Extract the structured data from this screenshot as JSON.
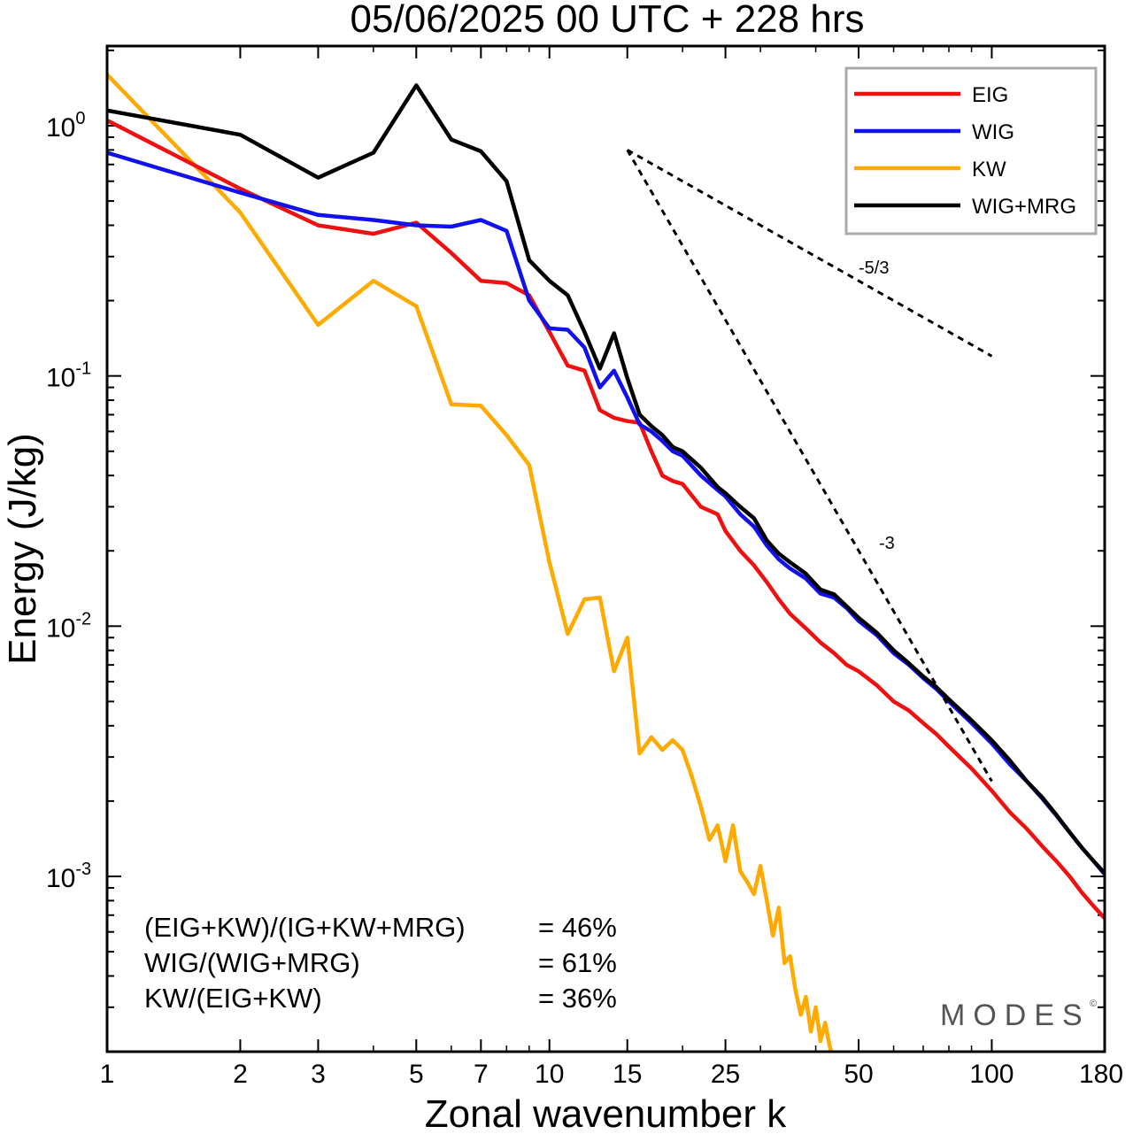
{
  "chart_data": {
    "type": "line",
    "title": "05/06/2025  00 UTC  + 228 hrs",
    "xlabel": "Zonal wavenumber k",
    "ylabel": "Energy (J/kg)",
    "xscale": "log",
    "yscale": "log",
    "xlim": [
      1,
      180
    ],
    "ylim": [
      0.00018,
      2.0
    ],
    "xticks": [
      {
        "value": 1,
        "label": "1"
      },
      {
        "value": 2,
        "label": "2"
      },
      {
        "value": 3,
        "label": "3"
      },
      {
        "value": 5,
        "label": "5"
      },
      {
        "value": 7,
        "label": "7"
      },
      {
        "value": 10,
        "label": "10"
      },
      {
        "value": 15,
        "label": "15"
      },
      {
        "value": 25,
        "label": "25"
      },
      {
        "value": 50,
        "label": "50"
      },
      {
        "value": 100,
        "label": "100"
      },
      {
        "value": 180,
        "label": "180"
      }
    ],
    "yticks": [
      {
        "value": 1,
        "base": "10",
        "exp": "0"
      },
      {
        "value": 0.1,
        "base": "10",
        "exp": "-1"
      },
      {
        "value": 0.01,
        "base": "10",
        "exp": "-2"
      },
      {
        "value": 0.001,
        "base": "10",
        "exp": "-3"
      }
    ],
    "legend_position": "top-right",
    "series": [
      {
        "name": "EIG",
        "color": "#ee1111",
        "points": [
          [
            1,
            1.05
          ],
          [
            2,
            0.56
          ],
          [
            3,
            0.4
          ],
          [
            4,
            0.37
          ],
          [
            5,
            0.41
          ],
          [
            6,
            0.31
          ],
          [
            7,
            0.24
          ],
          [
            8,
            0.235
          ],
          [
            9,
            0.21
          ],
          [
            10,
            0.15
          ],
          [
            11,
            0.11
          ],
          [
            12,
            0.105
          ],
          [
            13,
            0.073
          ],
          [
            14,
            0.068
          ],
          [
            15,
            0.066
          ],
          [
            16,
            0.065
          ],
          [
            17,
            0.05
          ],
          [
            18,
            0.04
          ],
          [
            19,
            0.038
          ],
          [
            20,
            0.037
          ],
          [
            22,
            0.03
          ],
          [
            24,
            0.028
          ],
          [
            25,
            0.024
          ],
          [
            27,
            0.02
          ],
          [
            29,
            0.0175
          ],
          [
            31,
            0.015
          ],
          [
            33,
            0.0128
          ],
          [
            35,
            0.0112
          ],
          [
            38,
            0.0098
          ],
          [
            41,
            0.0086
          ],
          [
            44,
            0.0078
          ],
          [
            47,
            0.007
          ],
          [
            50,
            0.0066
          ],
          [
            55,
            0.0058
          ],
          [
            60,
            0.005
          ],
          [
            65,
            0.0046
          ],
          [
            70,
            0.0041
          ],
          [
            75,
            0.0037
          ],
          [
            80,
            0.0033
          ],
          [
            90,
            0.0027
          ],
          [
            100,
            0.0022
          ],
          [
            110,
            0.0018
          ],
          [
            120,
            0.00155
          ],
          [
            130,
            0.00132
          ],
          [
            140,
            0.00115
          ],
          [
            150,
            0.001
          ],
          [
            160,
            0.00086
          ],
          [
            170,
            0.00076
          ],
          [
            180,
            0.00068
          ]
        ]
      },
      {
        "name": "WIG",
        "color": "#1111ee",
        "points": [
          [
            1,
            0.78
          ],
          [
            2,
            0.54
          ],
          [
            3,
            0.44
          ],
          [
            4,
            0.42
          ],
          [
            5,
            0.4
          ],
          [
            6,
            0.395
          ],
          [
            7,
            0.42
          ],
          [
            8,
            0.38
          ],
          [
            9,
            0.2
          ],
          [
            10,
            0.155
          ],
          [
            11,
            0.153
          ],
          [
            12,
            0.13
          ],
          [
            13,
            0.09
          ],
          [
            14,
            0.105
          ],
          [
            15,
            0.082
          ],
          [
            16,
            0.064
          ],
          [
            17,
            0.06
          ],
          [
            18,
            0.055
          ],
          [
            19,
            0.05
          ],
          [
            20,
            0.048
          ],
          [
            22,
            0.04
          ],
          [
            24,
            0.035
          ],
          [
            25,
            0.033
          ],
          [
            27,
            0.028
          ],
          [
            29,
            0.025
          ],
          [
            31,
            0.021
          ],
          [
            33,
            0.0185
          ],
          [
            35,
            0.017
          ],
          [
            38,
            0.0155
          ],
          [
            41,
            0.0135
          ],
          [
            44,
            0.013
          ],
          [
            47,
            0.0118
          ],
          [
            50,
            0.0105
          ],
          [
            55,
            0.0092
          ],
          [
            60,
            0.0078
          ],
          [
            65,
            0.007
          ],
          [
            70,
            0.0062
          ],
          [
            75,
            0.0056
          ],
          [
            80,
            0.005
          ],
          [
            90,
            0.0041
          ],
          [
            100,
            0.0034
          ],
          [
            110,
            0.0028
          ],
          [
            120,
            0.0024
          ],
          [
            130,
            0.00205
          ],
          [
            140,
            0.00175
          ],
          [
            150,
            0.0015
          ],
          [
            160,
            0.0013
          ],
          [
            170,
            0.00115
          ],
          [
            180,
            0.00102
          ]
        ]
      },
      {
        "name": "KW",
        "color": "#ffaa00",
        "points": [
          [
            1,
            1.6
          ],
          [
            2,
            0.45
          ],
          [
            3,
            0.16
          ],
          [
            4,
            0.24
          ],
          [
            5,
            0.19
          ],
          [
            6,
            0.077
          ],
          [
            7,
            0.076
          ],
          [
            8,
            0.058
          ],
          [
            9,
            0.044
          ],
          [
            10,
            0.018
          ],
          [
            11,
            0.0093
          ],
          [
            12,
            0.0128
          ],
          [
            13,
            0.013
          ],
          [
            14,
            0.0066
          ],
          [
            15,
            0.009
          ],
          [
            16,
            0.0031
          ],
          [
            17,
            0.0036
          ],
          [
            18,
            0.0032
          ],
          [
            19,
            0.0035
          ],
          [
            20,
            0.0032
          ],
          [
            21,
            0.0025
          ],
          [
            22,
            0.0019
          ],
          [
            23,
            0.0014
          ],
          [
            24,
            0.0016
          ],
          [
            25,
            0.00115
          ],
          [
            26,
            0.0016
          ],
          [
            27,
            0.00105
          ],
          [
            28,
            0.00095
          ],
          [
            29,
            0.00085
          ],
          [
            30,
            0.0011
          ],
          [
            31,
            0.0008
          ],
          [
            32,
            0.00058
          ],
          [
            33,
            0.00075
          ],
          [
            34,
            0.00045
          ],
          [
            35,
            0.00048
          ],
          [
            36,
            0.00035
          ],
          [
            37,
            0.00028
          ],
          [
            38,
            0.00033
          ],
          [
            39,
            0.00024
          ],
          [
            40,
            0.0003
          ],
          [
            41,
            0.00022
          ],
          [
            42,
            0.00026
          ],
          [
            43,
            0.00021
          ],
          [
            44,
            0.00018
          ]
        ]
      },
      {
        "name": "WIG+MRG",
        "color": "#000000",
        "points": [
          [
            1,
            1.15
          ],
          [
            2,
            0.92
          ],
          [
            3,
            0.62
          ],
          [
            4,
            0.78
          ],
          [
            5,
            1.45
          ],
          [
            6,
            0.88
          ],
          [
            7,
            0.79
          ],
          [
            8,
            0.6
          ],
          [
            9,
            0.29
          ],
          [
            10,
            0.24
          ],
          [
            11,
            0.21
          ],
          [
            12,
            0.15
          ],
          [
            13,
            0.107
          ],
          [
            14,
            0.148
          ],
          [
            15,
            0.098
          ],
          [
            16,
            0.07
          ],
          [
            17,
            0.063
          ],
          [
            18,
            0.058
          ],
          [
            19,
            0.052
          ],
          [
            20,
            0.05
          ],
          [
            22,
            0.043
          ],
          [
            24,
            0.036
          ],
          [
            25,
            0.034
          ],
          [
            27,
            0.03
          ],
          [
            29,
            0.027
          ],
          [
            31,
            0.022
          ],
          [
            33,
            0.0195
          ],
          [
            35,
            0.018
          ],
          [
            38,
            0.0162
          ],
          [
            41,
            0.014
          ],
          [
            44,
            0.0134
          ],
          [
            47,
            0.012
          ],
          [
            50,
            0.0108
          ],
          [
            55,
            0.0094
          ],
          [
            60,
            0.008
          ],
          [
            65,
            0.0071
          ],
          [
            70,
            0.0063
          ],
          [
            75,
            0.0057
          ],
          [
            80,
            0.0051
          ],
          [
            90,
            0.0042
          ],
          [
            100,
            0.0035
          ],
          [
            110,
            0.0029
          ],
          [
            120,
            0.0024
          ],
          [
            130,
            0.00207
          ],
          [
            140,
            0.00176
          ],
          [
            150,
            0.0015
          ],
          [
            160,
            0.0013
          ],
          [
            170,
            0.00115
          ],
          [
            180,
            0.00103
          ]
        ]
      }
    ],
    "reference_lines": [
      {
        "label": "-5/3",
        "from": [
          15,
          0.8
        ],
        "to": [
          100,
          0.12
        ]
      },
      {
        "label": "-3",
        "from": [
          15,
          0.8
        ],
        "to": [
          100,
          0.0024
        ]
      }
    ],
    "annotations": [
      {
        "text": "(EIG+KW)/(IG+KW+MRG)",
        "value": "= 46%"
      },
      {
        "text": "WIG/(WIG+MRG)",
        "value": "= 61%"
      },
      {
        "text": "KW/(EIG+KW)",
        "value": "= 36%"
      }
    ],
    "watermark": "MODES"
  }
}
